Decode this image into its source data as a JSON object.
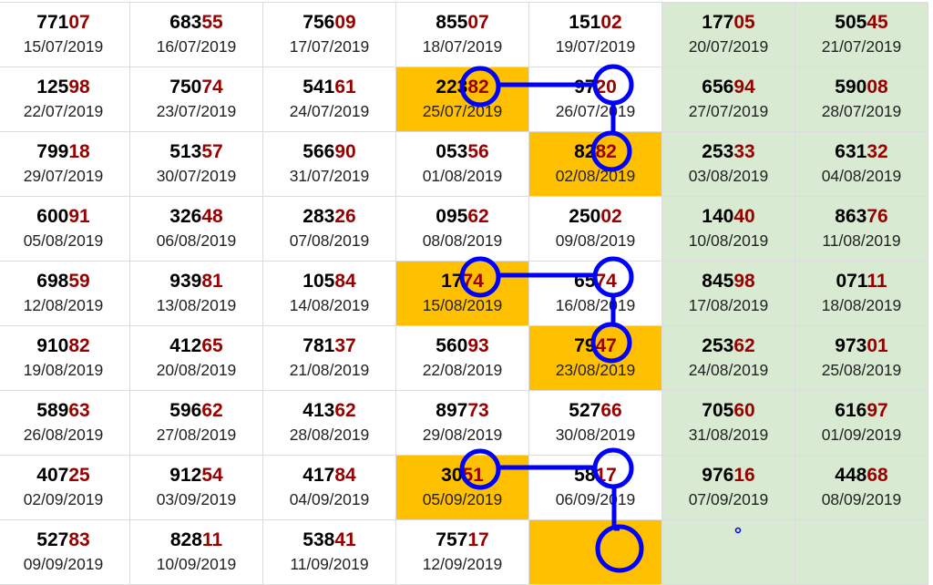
{
  "colors": {
    "highlight": "#ffc000",
    "weekend": "#d9ead3",
    "tail": "#990000",
    "marker": "#0000ff"
  },
  "rows": [
    [
      {
        "head": "771",
        "tail": "07",
        "date": "15/07/2019"
      },
      {
        "head": "683",
        "tail": "55",
        "date": "16/07/2019"
      },
      {
        "head": "756",
        "tail": "09",
        "date": "17/07/2019"
      },
      {
        "head": "855",
        "tail": "07",
        "date": "18/07/2019"
      },
      {
        "head": "151",
        "tail": "02",
        "date": "19/07/2019"
      },
      {
        "head": "177",
        "tail": "05",
        "date": "20/07/2019"
      },
      {
        "head": "505",
        "tail": "45",
        "date": "21/07/2019"
      }
    ],
    [
      {
        "head": "125",
        "tail": "98",
        "date": "22/07/2019"
      },
      {
        "head": "750",
        "tail": "74",
        "date": "23/07/2019"
      },
      {
        "head": "541",
        "tail": "61",
        "date": "24/07/2019"
      },
      {
        "head": "223",
        "tail": "82",
        "date": "25/07/2019",
        "hl": true
      },
      {
        "head": "97",
        "tail": "20",
        "date": "26/07/2019"
      },
      {
        "head": "656",
        "tail": "94",
        "date": "27/07/2019"
      },
      {
        "head": "590",
        "tail": "08",
        "date": "28/07/2019"
      }
    ],
    [
      {
        "head": "799",
        "tail": "18",
        "date": "29/07/2019"
      },
      {
        "head": "513",
        "tail": "57",
        "date": "30/07/2019"
      },
      {
        "head": "566",
        "tail": "90",
        "date": "31/07/2019"
      },
      {
        "head": "053",
        "tail": "56",
        "date": "01/08/2019"
      },
      {
        "head": "82",
        "tail": "82",
        "date": "02/08/2019",
        "hl": true
      },
      {
        "head": "253",
        "tail": "33",
        "date": "03/08/2019"
      },
      {
        "head": "631",
        "tail": "32",
        "date": "04/08/2019"
      }
    ],
    [
      {
        "head": "600",
        "tail": "91",
        "date": "05/08/2019"
      },
      {
        "head": "326",
        "tail": "48",
        "date": "06/08/2019"
      },
      {
        "head": "283",
        "tail": "26",
        "date": "07/08/2019"
      },
      {
        "head": "095",
        "tail": "62",
        "date": "08/08/2019"
      },
      {
        "head": "250",
        "tail": "02",
        "date": "09/08/2019"
      },
      {
        "head": "140",
        "tail": "40",
        "date": "10/08/2019"
      },
      {
        "head": "863",
        "tail": "76",
        "date": "11/08/2019"
      }
    ],
    [
      {
        "head": "698",
        "tail": "59",
        "date": "12/08/2019"
      },
      {
        "head": "939",
        "tail": "81",
        "date": "13/08/2019"
      },
      {
        "head": "105",
        "tail": "84",
        "date": "14/08/2019"
      },
      {
        "head": "17",
        "tail": "74",
        "date": "15/08/2019",
        "hl": true
      },
      {
        "head": "65",
        "tail": "74",
        "date": "16/08/2019"
      },
      {
        "head": "845",
        "tail": "98",
        "date": "17/08/2019"
      },
      {
        "head": "071",
        "tail": "11",
        "date": "18/08/2019"
      }
    ],
    [
      {
        "head": "910",
        "tail": "82",
        "date": "19/08/2019"
      },
      {
        "head": "412",
        "tail": "65",
        "date": "20/08/2019"
      },
      {
        "head": "781",
        "tail": "37",
        "date": "21/08/2019"
      },
      {
        "head": "560",
        "tail": "93",
        "date": "22/08/2019"
      },
      {
        "head": "79",
        "tail": "47",
        "date": "23/08/2019",
        "hl": true
      },
      {
        "head": "253",
        "tail": "62",
        "date": "24/08/2019"
      },
      {
        "head": "973",
        "tail": "01",
        "date": "25/08/2019"
      }
    ],
    [
      {
        "head": "589",
        "tail": "63",
        "date": "26/08/2019"
      },
      {
        "head": "596",
        "tail": "62",
        "date": "27/08/2019"
      },
      {
        "head": "413",
        "tail": "62",
        "date": "28/08/2019"
      },
      {
        "head": "897",
        "tail": "73",
        "date": "29/08/2019"
      },
      {
        "head": "527",
        "tail": "66",
        "date": "30/08/2019"
      },
      {
        "head": "705",
        "tail": "60",
        "date": "31/08/2019"
      },
      {
        "head": "616",
        "tail": "97",
        "date": "01/09/2019"
      }
    ],
    [
      {
        "head": "407",
        "tail": "25",
        "date": "02/09/2019"
      },
      {
        "head": "912",
        "tail": "54",
        "date": "03/09/2019"
      },
      {
        "head": "417",
        "tail": "84",
        "date": "04/09/2019"
      },
      {
        "head": "30",
        "tail": "51",
        "date": "05/09/2019",
        "hl": true
      },
      {
        "head": "58",
        "tail": "17",
        "date": "06/09/2019"
      },
      {
        "head": "976",
        "tail": "16",
        "date": "07/09/2019"
      },
      {
        "head": "448",
        "tail": "68",
        "date": "08/09/2019"
      }
    ],
    [
      {
        "head": "527",
        "tail": "83",
        "date": "09/09/2019"
      },
      {
        "head": "828",
        "tail": "11",
        "date": "10/09/2019"
      },
      {
        "head": "538",
        "tail": "41",
        "date": "11/09/2019"
      },
      {
        "head": "757",
        "tail": "17",
        "date": "12/09/2019"
      },
      {
        "head": "",
        "tail": "",
        "date": "",
        "hl": true
      },
      {
        "head": "",
        "tail": "",
        "date": ""
      },
      {
        "head": "",
        "tail": "",
        "date": ""
      }
    ]
  ]
}
